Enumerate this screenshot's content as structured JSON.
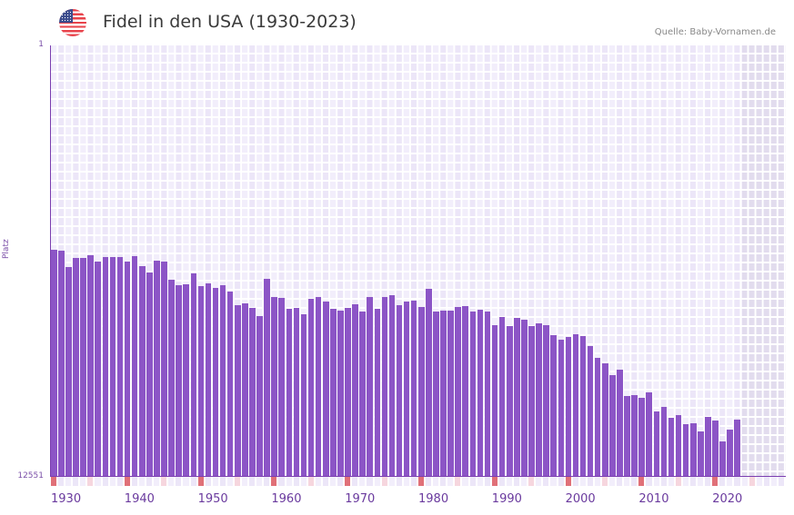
{
  "header": {
    "flag_icon": "us-flag-icon",
    "title": "Fidel in den USA (1930-2023)",
    "source": "Quelle: Baby-Vornamen.de"
  },
  "axes": {
    "y_top_label": "1",
    "y_bottom_label": "12551",
    "y_title": "Platz",
    "x_labels": [
      "1930",
      "1940",
      "1950",
      "1960",
      "1970",
      "1980",
      "1990",
      "2000",
      "2010",
      "2020"
    ]
  },
  "colors": {
    "bar": "#8c55c6",
    "axis": "#7b3fb0",
    "decade_marker": "#e07078",
    "half_decade_marker": "#f6d6de",
    "cell_a": "#f2eefb",
    "cell_b": "#ece6f8",
    "future_region": "#e2dcee"
  },
  "chart_data": {
    "type": "bar",
    "title": "Fidel in den USA (1930-2023)",
    "xlabel": "",
    "ylabel": "Platz",
    "ylim": [
      12551,
      1
    ],
    "y_inverted": true,
    "x_range": [
      1930,
      2029
    ],
    "grid": true,
    "legend": null,
    "annotation": "Quelle: Baby-Vornamen.de",
    "x": [
      1930,
      1931,
      1932,
      1933,
      1934,
      1935,
      1936,
      1937,
      1938,
      1939,
      1940,
      1941,
      1942,
      1943,
      1944,
      1945,
      1946,
      1947,
      1948,
      1949,
      1950,
      1951,
      1952,
      1953,
      1954,
      1955,
      1956,
      1957,
      1958,
      1959,
      1960,
      1961,
      1962,
      1963,
      1964,
      1965,
      1966,
      1967,
      1968,
      1969,
      1970,
      1971,
      1972,
      1973,
      1974,
      1975,
      1976,
      1977,
      1978,
      1979,
      1980,
      1981,
      1982,
      1983,
      1984,
      1985,
      1986,
      1987,
      1988,
      1989,
      1990,
      1991,
      1992,
      1993,
      1994,
      1995,
      1996,
      1997,
      1998,
      1999,
      2000,
      2001,
      2002,
      2003,
      2004,
      2005,
      2006,
      2007,
      2008,
      2009,
      2010,
      2011,
      2012,
      2013,
      2014,
      2015,
      2016,
      2017,
      2018,
      2019,
      2020,
      2021,
      2022,
      2023
    ],
    "values": [
      5946,
      5972,
      6448,
      6184,
      6184,
      6104,
      6289,
      6157,
      6157,
      6157,
      6289,
      6131,
      6421,
      6606,
      6263,
      6289,
      6818,
      6976,
      6950,
      6633,
      7003,
      6923,
      7056,
      6976,
      7161,
      7557,
      7505,
      7637,
      7874,
      6791,
      7320,
      7346,
      7663,
      7637,
      7822,
      7373,
      7320,
      7452,
      7663,
      7716,
      7637,
      7531,
      7742,
      7320,
      7663,
      7320,
      7267,
      7557,
      7452,
      7425,
      7610,
      7082,
      7742,
      7716,
      7716,
      7610,
      7584,
      7742,
      7689,
      7742,
      8139,
      7901,
      8165,
      7927,
      7980,
      8165,
      8086,
      8139,
      8430,
      8561,
      8482,
      8403,
      8456,
      8746,
      9090,
      9248,
      9592,
      9433,
      10199,
      10173,
      10252,
      10094,
      10649,
      10517,
      10834,
      10755,
      11019,
      10993,
      11231,
      10808,
      10913,
      11521,
      11178,
      10887
    ]
  }
}
